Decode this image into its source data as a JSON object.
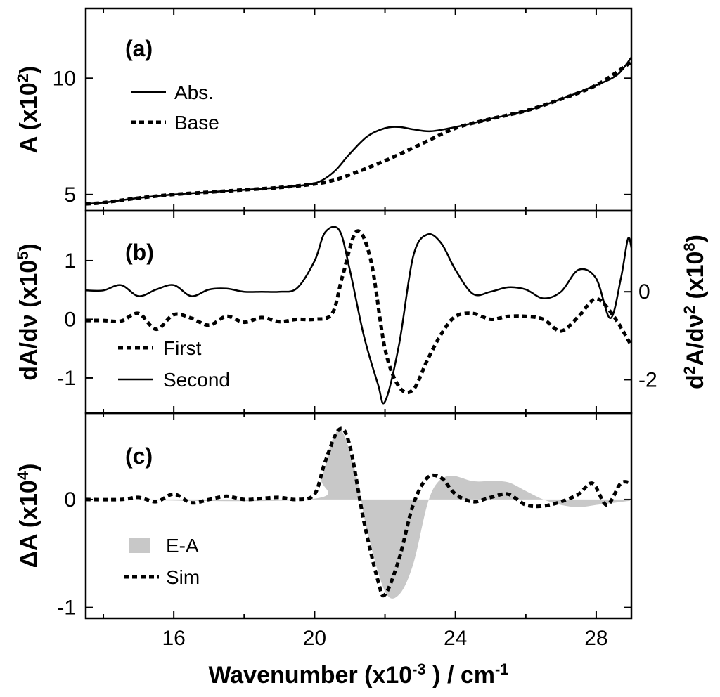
{
  "chart_data": [
    {
      "panel": "(a)",
      "type": "line",
      "ylabel_main": "A (x10",
      "ylabel_exp": "2",
      "ylabel_close": ")",
      "xlim": [
        13.5,
        29
      ],
      "ylim": [
        4.3,
        13
      ],
      "yticks": [
        {
          "v": 5,
          "label": "5"
        },
        {
          "v": 10,
          "label": "10"
        }
      ],
      "series": [
        {
          "name": "Abs.",
          "style": "solid",
          "x": [
            13.5,
            14,
            15,
            16,
            17,
            18,
            19,
            19.8,
            20.2,
            20.6,
            21,
            21.5,
            22,
            22.4,
            22.8,
            23.3,
            24,
            25,
            26,
            27,
            28,
            28.6,
            29
          ],
          "y": [
            4.6,
            4.65,
            4.85,
            5.0,
            5.1,
            5.2,
            5.3,
            5.42,
            5.6,
            6.05,
            6.75,
            7.5,
            7.85,
            7.9,
            7.8,
            7.72,
            7.9,
            8.25,
            8.6,
            9.1,
            9.7,
            10.15,
            10.9
          ]
        },
        {
          "name": "Base",
          "style": "dotted",
          "x": [
            13.5,
            14,
            15,
            16,
            17,
            18,
            19,
            20,
            20.5,
            21,
            22,
            23,
            24,
            25,
            26,
            27,
            28,
            29
          ],
          "y": [
            4.6,
            4.65,
            4.85,
            5.0,
            5.1,
            5.2,
            5.3,
            5.45,
            5.6,
            5.85,
            6.45,
            7.15,
            7.85,
            8.25,
            8.6,
            9.1,
            9.7,
            10.7
          ]
        }
      ]
    },
    {
      "panel": "(b)",
      "type": "line",
      "ylabel_left": "dA/dν (x10",
      "ylabel_left_exp": "5",
      "ylabel_left_close": ")",
      "ylabel_right_pre": "d",
      "ylabel_right_pre_exp": "2",
      "ylabel_right_main": "A/dν",
      "ylabel_right_exp": "2",
      "ylabel_right_mid": " (x10",
      "ylabel_right_exp2": "8",
      "ylabel_right_close": ")",
      "xlim": [
        13.5,
        29
      ],
      "ylim_left": [
        -1.6,
        1.85
      ],
      "yticks_left": [
        {
          "v": 1,
          "label": "1"
        },
        {
          "v": 0,
          "label": "0"
        },
        {
          "v": -1,
          "label": "-1"
        }
      ],
      "ylim_right": [
        -2.76,
        1.84
      ],
      "yticks_right": [
        {
          "v": 0,
          "label": "0"
        },
        {
          "v": -2,
          "label": "-2"
        }
      ],
      "series": [
        {
          "name": "First",
          "style": "dotted",
          "axis": "left",
          "x": [
            13.5,
            14,
            14.5,
            15,
            15.5,
            16,
            16.5,
            17,
            17.5,
            18,
            18.5,
            19,
            19.5,
            20,
            20.5,
            20.8,
            21.2,
            21.6,
            22,
            22.4,
            22.8,
            23.2,
            23.6,
            24,
            24.5,
            25,
            25.5,
            26,
            26.5,
            27,
            27.5,
            28,
            28.5,
            29
          ],
          "y": [
            -0.02,
            -0.02,
            -0.03,
            0.1,
            -0.17,
            0.08,
            0.02,
            -0.1,
            0.05,
            -0.05,
            0.03,
            -0.04,
            0.0,
            0.0,
            0.1,
            0.75,
            1.5,
            1.0,
            -0.5,
            -1.15,
            -1.2,
            -0.7,
            -0.25,
            0.05,
            0.1,
            0.0,
            0.05,
            0.05,
            0.0,
            -0.2,
            0.05,
            0.35,
            0.05,
            -0.45
          ]
        },
        {
          "name": "Second",
          "style": "solid",
          "axis": "right",
          "x": [
            13.5,
            14,
            14.5,
            15,
            15.5,
            16,
            16.5,
            17,
            17.5,
            18,
            18.5,
            19,
            19.5,
            20,
            20.3,
            20.7,
            21,
            21.4,
            21.8,
            22,
            22.4,
            22.8,
            23.2,
            23.6,
            24,
            24.5,
            25,
            25.5,
            26,
            26.5,
            27,
            27.5,
            28,
            28.4,
            28.7,
            28.9,
            29
          ],
          "y": [
            0.03,
            0.03,
            0.15,
            -0.1,
            0.05,
            0.15,
            -0.1,
            0.05,
            0.07,
            0.0,
            0.0,
            0.0,
            0.08,
            0.7,
            1.35,
            1.4,
            0.5,
            -1.0,
            -2.1,
            -2.5,
            -1.2,
            0.8,
            1.3,
            1.1,
            0.5,
            -0.05,
            0.0,
            0.1,
            0.05,
            -0.15,
            0.0,
            0.5,
            0.3,
            -0.6,
            0.3,
            1.2,
            1.0
          ]
        }
      ]
    },
    {
      "panel": "(c)",
      "type": "area",
      "ylabel_main": "ΔA (x10",
      "ylabel_exp": "4",
      "ylabel_close": ")",
      "xlim": [
        13.5,
        29
      ],
      "ylim": [
        -1.1,
        0.8
      ],
      "yticks": [
        {
          "v": 0,
          "label": "0"
        },
        {
          "v": -1,
          "label": "-1"
        }
      ],
      "xticks": [
        {
          "v": 16,
          "label": "16"
        },
        {
          "v": 20,
          "label": "20"
        },
        {
          "v": 24,
          "label": "24"
        },
        {
          "v": 28,
          "label": "28"
        }
      ],
      "xlabel_main": "Wavenumber (x10",
      "xlabel_exp": "-3",
      "xlabel_mid": " ) / cm",
      "xlabel_exp2": "-1",
      "series": [
        {
          "name": "E-A",
          "style": "filled",
          "color": "#c8c8c8",
          "x": [
            13.5,
            19.8,
            20.2,
            20.5,
            20.8,
            21.2,
            21.5,
            22,
            22.4,
            22.8,
            23.2,
            23.5,
            23.9,
            24.5,
            25,
            25.5,
            26,
            26.5,
            27,
            27.5,
            28,
            28.5,
            29
          ],
          "y": [
            0,
            0,
            0.2,
            0.55,
            0.62,
            0.2,
            -0.3,
            -0.85,
            -0.88,
            -0.6,
            -0.05,
            0.16,
            0.22,
            0.17,
            0.17,
            0.16,
            0.08,
            0.0,
            -0.05,
            -0.07,
            -0.05,
            -0.03,
            -0.01
          ]
        },
        {
          "name": "Sim",
          "style": "dotted",
          "x": [
            13.5,
            14.5,
            15,
            15.5,
            16,
            16.5,
            17,
            17.5,
            18,
            18.5,
            19,
            19.5,
            20,
            20.3,
            20.7,
            21,
            21.4,
            21.8,
            22,
            22.4,
            22.8,
            23.2,
            23.6,
            24,
            24.5,
            25,
            25.5,
            26,
            26.5,
            27,
            27.5,
            27.9,
            28.3,
            28.7,
            29
          ],
          "y": [
            0,
            0,
            0.02,
            -0.02,
            0.05,
            -0.03,
            0.0,
            0.03,
            0.0,
            0.01,
            0.02,
            0.0,
            0.05,
            0.35,
            0.65,
            0.5,
            -0.2,
            -0.75,
            -0.88,
            -0.55,
            -0.05,
            0.2,
            0.2,
            0.05,
            -0.02,
            0.02,
            0.05,
            -0.05,
            -0.06,
            -0.02,
            0.05,
            0.15,
            -0.05,
            0.15,
            0.15
          ]
        }
      ]
    }
  ]
}
